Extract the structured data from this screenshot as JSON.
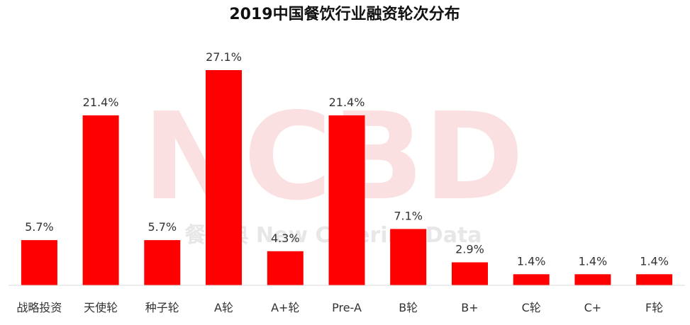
{
  "chart_data": {
    "type": "bar",
    "title": "2019中国餐饮行业融资轮次分布",
    "xlabel": "",
    "ylabel": "",
    "categories": [
      "战略投资",
      "天使轮",
      "种子轮",
      "A轮",
      "A+轮",
      "Pre-A",
      "B轮",
      "B+",
      "C轮",
      "C+",
      "F轮"
    ],
    "values": [
      5.7,
      21.4,
      5.7,
      27.1,
      4.3,
      21.4,
      7.1,
      2.9,
      1.4,
      1.4,
      1.4
    ],
    "data_labels": [
      "5.7%",
      "21.4%",
      "5.7%",
      "27.1%",
      "4.3%",
      "21.4%",
      "7.1%",
      "2.9%",
      "1.4%",
      "1.4%",
      "1.4%"
    ],
    "ylim": [
      0,
      27.1
    ],
    "grid": false,
    "legend": "none",
    "bar_color": "#ff0000"
  },
  "watermark": {
    "logo_text": "NCBD",
    "tagline": "餐宝典 New Catering Data"
  }
}
